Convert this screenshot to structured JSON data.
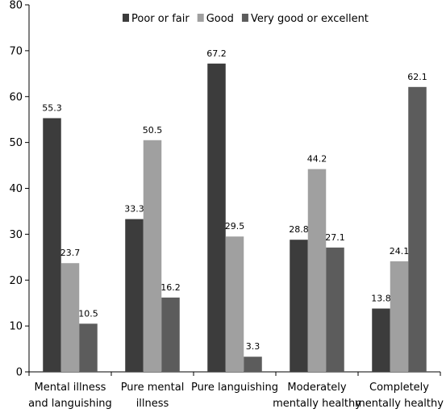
{
  "chart_data": {
    "type": "bar",
    "categories": [
      [
        "Mental illness",
        "and languishing"
      ],
      [
        "Pure mental",
        "illness"
      ],
      [
        "Pure languishing"
      ],
      [
        "Moderately",
        "mentally healthy"
      ],
      [
        "Completely",
        "mentally healthy"
      ]
    ],
    "series": [
      {
        "name": "Poor or fair",
        "color": "#3c3c3c",
        "values": [
          55.3,
          33.3,
          67.2,
          28.8,
          13.8
        ],
        "labels": [
          "55.3",
          "33.3",
          "67.2",
          "28.8",
          "13.8"
        ]
      },
      {
        "name": "Good",
        "color": "#a0a0a0",
        "values": [
          23.7,
          50.5,
          29.5,
          44.2,
          24.1
        ],
        "labels": [
          "23.7",
          "50.5",
          "29.5",
          "44.2",
          "24.1"
        ]
      },
      {
        "name": "Very good or excellent",
        "color": "#5c5c5c",
        "values": [
          10.5,
          16.2,
          3.3,
          27.1,
          62.1
        ],
        "labels": [
          "10.5",
          "16.2",
          "3.3",
          "27.1",
          "62.1"
        ]
      }
    ],
    "ylim": [
      0,
      80
    ],
    "yticks": [
      0,
      10,
      20,
      30,
      40,
      50,
      60,
      70,
      80
    ],
    "grid": false,
    "legend": "top"
  }
}
